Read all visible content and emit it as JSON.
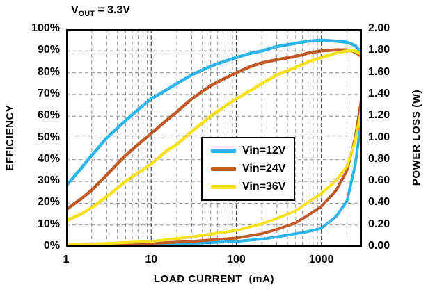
{
  "title": {
    "prefix": "V",
    "subscript": "OUT",
    "suffix": " = 3.3V"
  },
  "chart_data": {
    "type": "line",
    "title": "Vout = 3.3V",
    "x_axis": {
      "label": "LOAD CURRENT  (mA)",
      "scale": "log",
      "min": 1,
      "max": 3000,
      "ticks": [
        1,
        10,
        100,
        1000
      ]
    },
    "y_axis_left": {
      "label": "EFFICIENCY",
      "min": 0,
      "max": 100,
      "unit": "%",
      "ticks": [
        "100%",
        "90%",
        "80%",
        "70%",
        "60%",
        "50%",
        "40%",
        "30%",
        "20%",
        "10%",
        "0%"
      ]
    },
    "y_axis_right": {
      "label": "POWER LOSS (W)",
      "min": 0,
      "max": 2,
      "unit": "W",
      "ticks": [
        "2.00",
        "1.80",
        "1.60",
        "1.40",
        "1.20",
        "1.00",
        "0.80",
        "0.60",
        "0.40",
        "0.20",
        "0.00"
      ]
    },
    "grid": {
      "horizontal_step_percent": 10,
      "vertical": "log-minor",
      "style": "dashed"
    },
    "legend_position": "inside-center-right",
    "series": [
      {
        "name": "Vin=12V",
        "color": "#2fb4e9",
        "efficiency": {
          "x": [
            1,
            1.5,
            2,
            3,
            5,
            7,
            10,
            15,
            20,
            30,
            50,
            70,
            100,
            150,
            200,
            300,
            500,
            700,
            1000,
            1500,
            2000,
            2500,
            3000
          ],
          "y_percent": [
            28,
            36,
            42,
            50,
            58,
            63,
            68,
            72,
            75,
            79,
            83,
            85,
            87,
            89,
            90,
            92,
            93.5,
            94.5,
            95,
            94.5,
            94,
            92.5,
            89
          ]
        },
        "power_loss": {
          "x": [
            1,
            3,
            10,
            30,
            100,
            200,
            300,
            500,
            700,
            1000,
            1500,
            2000,
            2500,
            3000
          ],
          "y_watts": [
            0.01,
            0.01,
            0.02,
            0.03,
            0.05,
            0.07,
            0.09,
            0.12,
            0.14,
            0.17,
            0.28,
            0.42,
            0.75,
            1.2
          ]
        }
      },
      {
        "name": "Vin=24V",
        "color": "#c05a28",
        "efficiency": {
          "x": [
            1,
            1.5,
            2,
            3,
            5,
            7,
            10,
            15,
            20,
            30,
            50,
            70,
            100,
            150,
            200,
            300,
            500,
            700,
            1000,
            1500,
            2000,
            2500,
            3000
          ],
          "y_percent": [
            17,
            22,
            26,
            33,
            42,
            47,
            52,
            58,
            62,
            68,
            74,
            77,
            80,
            83,
            84.5,
            86,
            87.5,
            89,
            90,
            90.5,
            90.5,
            89.5,
            87.5
          ]
        },
        "power_loss": {
          "x": [
            1,
            3,
            10,
            30,
            100,
            200,
            300,
            500,
            700,
            1000,
            1500,
            2000,
            2500,
            3000
          ],
          "y_watts": [
            0.02,
            0.02,
            0.03,
            0.05,
            0.08,
            0.12,
            0.16,
            0.22,
            0.29,
            0.37,
            0.52,
            0.7,
            1.0,
            1.38
          ]
        }
      },
      {
        "name": "Vin=36V",
        "color": "#f7e01c",
        "efficiency": {
          "x": [
            1,
            1.5,
            2,
            3,
            5,
            7,
            10,
            15,
            20,
            30,
            50,
            70,
            100,
            150,
            200,
            300,
            500,
            700,
            1000,
            1500,
            2000,
            2500,
            3000
          ],
          "y_percent": [
            12,
            15,
            18,
            23,
            30,
            34,
            38,
            44,
            47,
            53,
            60,
            64,
            68,
            72,
            75,
            79,
            82.5,
            85,
            87,
            89,
            90,
            90,
            88.5
          ]
        },
        "power_loss": {
          "x": [
            1,
            3,
            10,
            30,
            100,
            200,
            300,
            500,
            700,
            1000,
            1500,
            2000,
            2500,
            3000
          ],
          "y_watts": [
            0.02,
            0.03,
            0.05,
            0.09,
            0.15,
            0.21,
            0.26,
            0.33,
            0.41,
            0.49,
            0.61,
            0.74,
            0.97,
            1.28
          ]
        }
      }
    ]
  }
}
